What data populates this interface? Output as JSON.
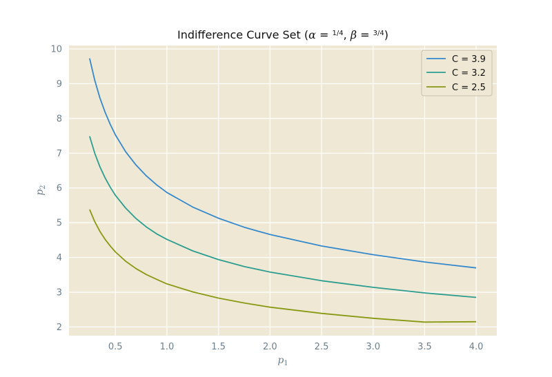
{
  "chart_data": {
    "type": "line",
    "title_parts": {
      "prefix": "Indifference Curve Set (",
      "alpha_sym": "α",
      "beta_sym": "β",
      "eq": " = ",
      "sep": ", ",
      "suffix": ")",
      "alpha_num": "1",
      "alpha_den": "4",
      "beta_num": "3",
      "beta_den": "4"
    },
    "xlabel": {
      "base": "p",
      "sub": "1"
    },
    "ylabel": {
      "base": "p",
      "sub": "2"
    },
    "xlim": [
      0.05,
      4.2
    ],
    "ylim": [
      1.75,
      10.1
    ],
    "xticks": [
      0.5,
      1.0,
      1.5,
      2.0,
      2.5,
      3.0,
      3.5,
      4.0
    ],
    "xtick_labels": [
      "0.5",
      "1.0",
      "1.5",
      "2.0",
      "2.5",
      "3.0",
      "3.5",
      "4.0"
    ],
    "yticks": [
      2,
      3,
      4,
      5,
      6,
      7,
      8,
      9,
      10
    ],
    "ytick_labels": [
      "2",
      "3",
      "4",
      "5",
      "6",
      "7",
      "8",
      "9",
      "10"
    ],
    "grid": true,
    "legend_position": "top-right",
    "x": [
      0.25,
      0.3,
      0.35,
      0.4,
      0.45,
      0.5,
      0.6,
      0.7,
      0.8,
      0.9,
      1.0,
      1.25,
      1.5,
      1.75,
      2.0,
      2.5,
      3.0,
      3.5,
      4.0
    ],
    "series": [
      {
        "name": "C = 3.9",
        "color": "#3388cc",
        "values": [
          9.73,
          9.1,
          8.59,
          8.18,
          7.83,
          7.53,
          7.04,
          6.66,
          6.35,
          6.09,
          5.87,
          5.45,
          5.13,
          4.87,
          4.66,
          4.33,
          4.08,
          3.87,
          3.7
        ]
      },
      {
        "name": "C = 3.2",
        "color": "#2a9d8f",
        "values": [
          7.49,
          7.0,
          6.61,
          6.29,
          6.02,
          5.79,
          5.42,
          5.12,
          4.88,
          4.68,
          4.52,
          4.19,
          3.94,
          3.74,
          3.58,
          3.33,
          3.14,
          2.98,
          2.85
        ]
      },
      {
        "name": "C = 2.5",
        "color": "#889911",
        "values": [
          5.38,
          5.03,
          4.75,
          4.52,
          4.33,
          4.16,
          3.89,
          3.68,
          3.51,
          3.37,
          3.24,
          3.01,
          2.83,
          2.69,
          2.57,
          2.39,
          2.25,
          2.14,
          2.15
        ]
      }
    ]
  }
}
